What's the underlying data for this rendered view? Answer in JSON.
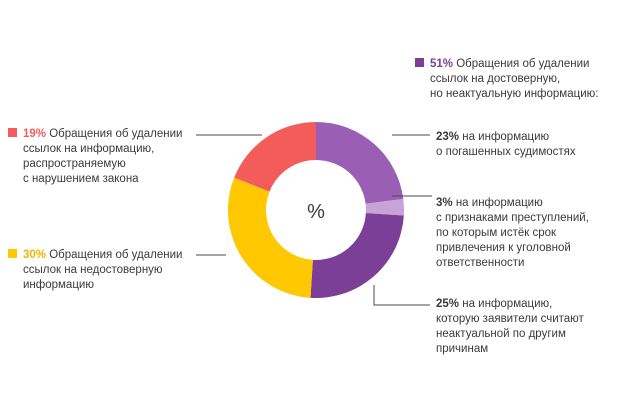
{
  "colors": {
    "coral": "#f45c5c",
    "yellow": "#ffc800",
    "purple_dark": "#7b3f98",
    "purple_mid": "#9a5fb4",
    "purple_light": "#c7a3d8",
    "leader": "#4a4a4a"
  },
  "chart_data": {
    "type": "pie",
    "center_label": "%",
    "slices": [
      {
        "name": "Обращения об удалении ссылок на информацию, распространяемую с нарушением закона",
        "value": 19,
        "color": "#f45c5c"
      },
      {
        "name": "Обращения об удалении ссылок на недостоверную информацию",
        "value": 30,
        "color": "#ffc800"
      },
      {
        "name": "на информацию о погашенных судимостях",
        "value": 23,
        "color": "#9a5fb4"
      },
      {
        "name": "на информацию с признаками преступлений, по которым истёк срок привлечения к уголовной ответственности",
        "value": 3,
        "color": "#c7a3d8"
      },
      {
        "name": "на информацию, которую заявители считают неактуальной по другим причинам",
        "value": 25,
        "color": "#7b3f98"
      }
    ],
    "group": {
      "name": "Обращения об удалении ссылок на достоверную, но неактуальную информацию:",
      "value": 51
    }
  },
  "labels": {
    "red": {
      "pct": "19%",
      "lines": [
        "Обращения об удалении",
        "ссылок на информацию,",
        "распространяемую",
        "с нарушением закона"
      ]
    },
    "yellow": {
      "pct": "30%",
      "lines": [
        "Обращения об удалении",
        "ссылок на недостоверную",
        "информацию"
      ]
    },
    "purple": {
      "pct": "51%",
      "lines": [
        "Обращения об удалении",
        "ссылок на достоверную,",
        "но неактуальную информацию:"
      ]
    },
    "sub1": {
      "pct": "23%",
      "lines": [
        "на информацию",
        "о погашенных судимостях"
      ]
    },
    "sub2": {
      "pct": "3%",
      "lines": [
        "на информацию",
        "с признаками преступлений,",
        "по которым истёк срок",
        "привлечения к уголовной",
        "ответственности"
      ]
    },
    "sub3": {
      "pct": "25%",
      "lines": [
        "на информацию,",
        "которую заявители считают",
        "неактуальной по другим",
        "причинам"
      ]
    }
  }
}
